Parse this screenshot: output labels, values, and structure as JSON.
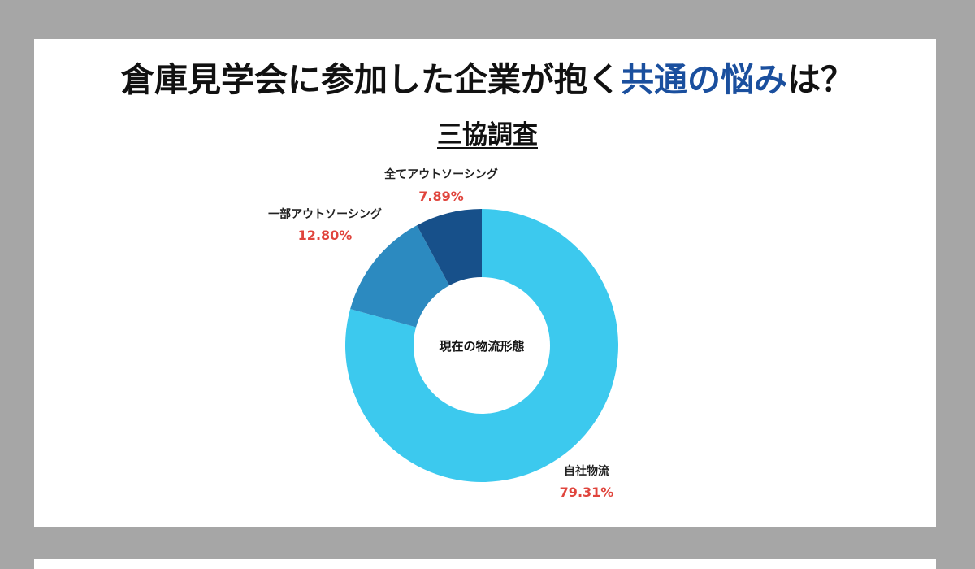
{
  "header": {
    "title_part1": "倉庫見学会に参加した企業が抱く",
    "title_highlight": "共通の悩み",
    "title_part2": "は？",
    "subtitle": "三協調査"
  },
  "chart_data": {
    "type": "pie",
    "center_label": "現在の物流形態",
    "slices": [
      {
        "label": "自社物流",
        "value": 79.31,
        "value_label": "79.31%",
        "color": "#3cc9ee"
      },
      {
        "label": "一部アウトソーシング",
        "value": 12.8,
        "value_label": "12.80%",
        "color": "#2c8ac0"
      },
      {
        "label": "全てアウトソーシング",
        "value": 7.89,
        "value_label": "7.89%",
        "color": "#17508a"
      }
    ],
    "value_label_color": "#e0453d",
    "colors": {
      "title_highlight": "#1a4f9e"
    }
  }
}
